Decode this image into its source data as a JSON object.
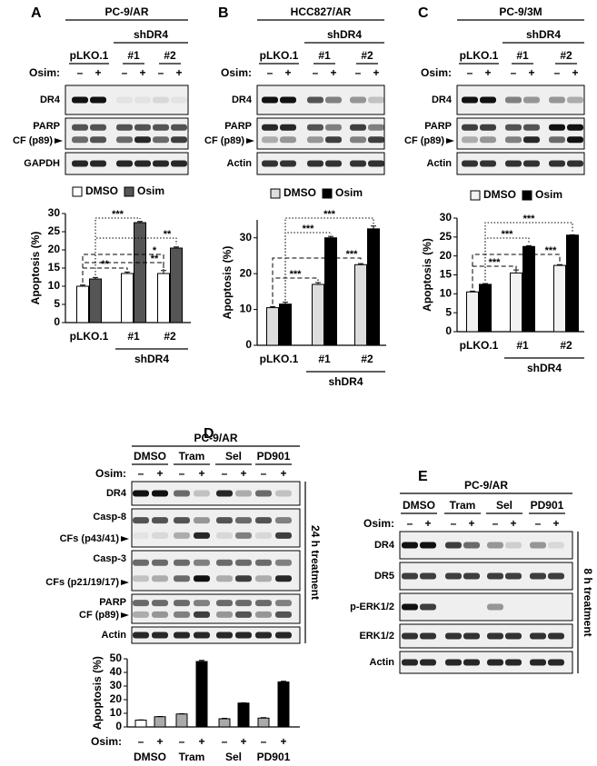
{
  "panels": [
    {
      "letter": "A",
      "title": "PC-9/AR",
      "group_label": "shDR4",
      "lanes": [
        "pLKO.1",
        "#1",
        "#2"
      ],
      "treatment_label": "Osim:",
      "signs": [
        "–",
        "+",
        "–",
        "+",
        "–",
        "+"
      ],
      "rows": [
        {
          "label": "DR4"
        },
        {
          "label": "PARP",
          "sublabel": "CF (p89)"
        },
        {
          "label": "GAPDH"
        }
      ]
    },
    {
      "letter": "B",
      "title": "HCC827/AR",
      "group_label": "shDR4",
      "lanes": [
        "pLKO.1",
        "#1",
        "#2"
      ],
      "treatment_label": "Osim:",
      "signs": [
        "–",
        "+",
        "–",
        "+",
        "–",
        "+"
      ],
      "rows": [
        {
          "label": "DR4"
        },
        {
          "label": "PARP",
          "sublabel": "CF (p89)"
        },
        {
          "label": "Actin"
        }
      ]
    },
    {
      "letter": "C",
      "title": "PC-9/3M",
      "group_label": "shDR4",
      "lanes": [
        "pLKO.1",
        "#1",
        "#2"
      ],
      "treatment_label": "Osim:",
      "signs": [
        "–",
        "+",
        "–",
        "+",
        "–",
        "+"
      ],
      "rows": [
        {
          "label": "DR4"
        },
        {
          "label": "PARP",
          "sublabel": "CF (p89)"
        },
        {
          "label": "Actin"
        }
      ]
    },
    {
      "letter": "D",
      "title": "PC-9/AR",
      "lanes": [
        "DMSO",
        "Tram",
        "Sel",
        "PD901"
      ],
      "treatment_label": "Osim:",
      "signs": [
        "–",
        "+",
        "–",
        "+",
        "–",
        "+",
        "–",
        "+"
      ],
      "rows": [
        {
          "label": "DR4"
        },
        {
          "label": "Casp-8",
          "sublabel": "CFs (p43/41)"
        },
        {
          "label": "Casp-3",
          "sublabel": "CFs (p21/19/17)"
        },
        {
          "label": "PARP",
          "sublabel": "CF (p89)"
        },
        {
          "label": "Actin"
        }
      ],
      "side_label": "24 h treatment"
    },
    {
      "letter": "E",
      "title": "PC-9/AR",
      "lanes": [
        "DMSO",
        "Tram",
        "Sel",
        "PD901"
      ],
      "treatment_label": "Osim:",
      "signs": [
        "–",
        "+",
        "–",
        "+",
        "–",
        "+",
        "–",
        "+"
      ],
      "rows": [
        {
          "label": "DR4"
        },
        {
          "label": "DR5"
        },
        {
          "label": "p-ERK1/2"
        },
        {
          "label": "ERK1/2"
        },
        {
          "label": "Actin"
        }
      ],
      "side_label": "8 h treatment"
    }
  ],
  "chart_data": [
    {
      "type": "bar",
      "y_label": "Apoptosis (%)",
      "categories": [
        "pLKO.1",
        "#1",
        "#2"
      ],
      "group_label": "shDR4",
      "series": [
        {
          "name": "DMSO",
          "color": "#ffffff",
          "values": [
            10,
            13.5,
            13.5
          ],
          "errors": [
            0.3,
            0.4,
            0.8
          ]
        },
        {
          "name": "Osim",
          "color": "#555555",
          "values": [
            12,
            27.5,
            20.5
          ],
          "errors": [
            0.4,
            0.3,
            0.3
          ]
        }
      ],
      "ylim": [
        0,
        30
      ],
      "yticks": [
        0,
        5,
        10,
        15,
        20,
        25,
        30
      ],
      "annotations": [
        "***",
        "**",
        "**",
        "*",
        "**"
      ]
    },
    {
      "type": "bar",
      "y_label": "Apoptosis (%)",
      "categories": [
        "pLKO.1",
        "#1",
        "#2"
      ],
      "group_label": "shDR4",
      "series": [
        {
          "name": "DMSO",
          "color": "#dddddd",
          "values": [
            10.5,
            17,
            22.5
          ],
          "errors": [
            0.3,
            0.5,
            0.3
          ]
        },
        {
          "name": "Osim",
          "color": "#000000",
          "values": [
            11.5,
            30,
            32.5
          ],
          "errors": [
            0.5,
            0.4,
            0.8
          ]
        }
      ],
      "ylim": [
        0,
        35
      ],
      "yticks": [
        0,
        10,
        20,
        30
      ],
      "annotations": [
        "***",
        "***",
        "***",
        "***"
      ]
    },
    {
      "type": "bar",
      "y_label": "Apoptosis (%)",
      "categories": [
        "pLKO.1",
        "#1",
        "#2"
      ],
      "group_label": "shDR4",
      "series": [
        {
          "name": "DMSO",
          "color": "#f2f2f2",
          "values": [
            10.5,
            15.5,
            17.5
          ],
          "errors": [
            0.2,
            0.8,
            0.2
          ]
        },
        {
          "name": "Osim",
          "color": "#000000",
          "values": [
            12.5,
            22.5,
            25.5
          ],
          "errors": [
            0.2,
            0.2,
            0.1
          ]
        }
      ],
      "ylim": [
        0,
        30
      ],
      "yticks": [
        0,
        5,
        10,
        15,
        20,
        25,
        30
      ],
      "annotations": [
        "***",
        "***",
        "***",
        "***"
      ]
    },
    {
      "type": "bar",
      "y_label": "Apoptosis (%)",
      "x_row_label": "Osim:",
      "categories": [
        "–",
        "+",
        "–",
        "+",
        "–",
        "+",
        "–",
        "+"
      ],
      "groups": [
        "DMSO",
        "Tram",
        "Sel",
        "PD901"
      ],
      "values": [
        5,
        7.5,
        9.5,
        48,
        6,
        17.5,
        6.5,
        33
      ],
      "errors": [
        0.2,
        0.2,
        0.2,
        0.8,
        0.3,
        0.2,
        0.3,
        0.5
      ],
      "colors": [
        "#ffffff",
        "#aaaaaa",
        "#aaaaaa",
        "#000000",
        "#aaaaaa",
        "#000000",
        "#aaaaaa",
        "#000000"
      ],
      "ylim": [
        0,
        50
      ],
      "yticks": [
        0,
        10,
        20,
        30,
        40,
        50
      ]
    }
  ]
}
